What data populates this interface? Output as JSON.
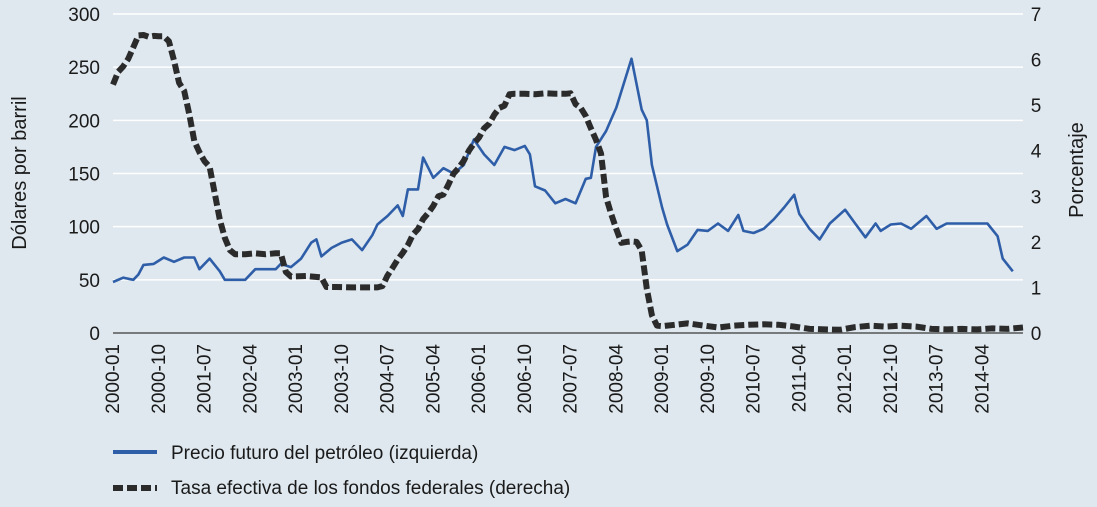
{
  "chart_data": {
    "type": "line",
    "ylabel_left": "Dólares por barril",
    "ylabel_right": "Porcentaje",
    "ylim_left": [
      0,
      300
    ],
    "ylim_right": [
      0,
      7
    ],
    "yticks_left": [
      "0",
      "50",
      "100",
      "150",
      "200",
      "250",
      "300"
    ],
    "yticks_right": [
      "0",
      "1",
      "2",
      "3",
      "4",
      "5",
      "6",
      "7"
    ],
    "x_start": "2000-01",
    "x_end": "2014-12",
    "xtick_labels": [
      "2000-01",
      "2000-10",
      "2001-07",
      "2002-04",
      "2003-01",
      "2003-10",
      "2004-07",
      "2005-04",
      "2006-01",
      "2006-10",
      "2007-07",
      "2008-04",
      "2009-01",
      "2009-10",
      "2010-07",
      "2011-04",
      "2012-01",
      "2012-10",
      "2013-07",
      "2014-04"
    ],
    "grid": true,
    "legend_position": "bottom",
    "colors": {
      "oil": "#2f5ea8",
      "rate": "#2b2b2b",
      "background": "#dfe8ef",
      "grid": "#ffffff"
    },
    "series": [
      {
        "name": "Precio futuro del petróleo (izquierda)",
        "axis": "left",
        "style": "solid",
        "points": [
          [
            "2000-01",
            48
          ],
          [
            "2000-03",
            52
          ],
          [
            "2000-05",
            50
          ],
          [
            "2000-06",
            55
          ],
          [
            "2000-07",
            64
          ],
          [
            "2000-09",
            65
          ],
          [
            "2000-11",
            71
          ],
          [
            "2001-01",
            67
          ],
          [
            "2001-03",
            71
          ],
          [
            "2001-05",
            71
          ],
          [
            "2001-06",
            60
          ],
          [
            "2001-08",
            70
          ],
          [
            "2001-10",
            58
          ],
          [
            "2001-11",
            50
          ],
          [
            "2002-01",
            50
          ],
          [
            "2002-03",
            50
          ],
          [
            "2002-05",
            60
          ],
          [
            "2002-07",
            60
          ],
          [
            "2002-09",
            60
          ],
          [
            "2002-10",
            65
          ],
          [
            "2002-12",
            62
          ],
          [
            "2003-02",
            70
          ],
          [
            "2003-04",
            85
          ],
          [
            "2003-05",
            88
          ],
          [
            "2003-06",
            72
          ],
          [
            "2003-08",
            80
          ],
          [
            "2003-10",
            85
          ],
          [
            "2003-12",
            88
          ],
          [
            "2004-02",
            78
          ],
          [
            "2004-04",
            92
          ],
          [
            "2004-05",
            102
          ],
          [
            "2004-07",
            110
          ],
          [
            "2004-09",
            120
          ],
          [
            "2004-10",
            110
          ],
          [
            "2004-11",
            135
          ],
          [
            "2005-01",
            135
          ],
          [
            "2005-02",
            165
          ],
          [
            "2005-04",
            146
          ],
          [
            "2005-06",
            155
          ],
          [
            "2005-08",
            150
          ],
          [
            "2005-10",
            158
          ],
          [
            "2005-12",
            182
          ],
          [
            "2006-02",
            168
          ],
          [
            "2006-04",
            158
          ],
          [
            "2006-06",
            175
          ],
          [
            "2006-08",
            172
          ],
          [
            "2006-10",
            176
          ],
          [
            "2006-11",
            168
          ],
          [
            "2006-12",
            138
          ],
          [
            "2007-02",
            134
          ],
          [
            "2007-04",
            122
          ],
          [
            "2007-06",
            126
          ],
          [
            "2007-08",
            122
          ],
          [
            "2007-10",
            145
          ],
          [
            "2007-11",
            146
          ],
          [
            "2007-12",
            175
          ],
          [
            "2008-02",
            190
          ],
          [
            "2008-04",
            212
          ],
          [
            "2008-07",
            258
          ],
          [
            "2008-09",
            210
          ],
          [
            "2008-10",
            200
          ],
          [
            "2008-11",
            158
          ],
          [
            "2009-01",
            118
          ],
          [
            "2009-02",
            102
          ],
          [
            "2009-04",
            77
          ],
          [
            "2009-06",
            83
          ],
          [
            "2009-08",
            97
          ],
          [
            "2009-10",
            96
          ],
          [
            "2009-12",
            103
          ],
          [
            "2010-02",
            96
          ],
          [
            "2010-04",
            111
          ],
          [
            "2010-05",
            96
          ],
          [
            "2010-07",
            94
          ],
          [
            "2010-09",
            98
          ],
          [
            "2010-11",
            107
          ],
          [
            "2011-01",
            118
          ],
          [
            "2011-03",
            130
          ],
          [
            "2011-04",
            112
          ],
          [
            "2011-06",
            98
          ],
          [
            "2011-08",
            88
          ],
          [
            "2011-10",
            103
          ],
          [
            "2012-01",
            116
          ],
          [
            "2012-03",
            103
          ],
          [
            "2012-05",
            90
          ],
          [
            "2012-07",
            103
          ],
          [
            "2012-08",
            96
          ],
          [
            "2012-10",
            102
          ],
          [
            "2012-12",
            103
          ],
          [
            "2013-02",
            98
          ],
          [
            "2013-05",
            110
          ],
          [
            "2013-07",
            98
          ],
          [
            "2013-09",
            103
          ],
          [
            "2013-11",
            103
          ],
          [
            "2014-01",
            103
          ],
          [
            "2014-03",
            103
          ],
          [
            "2014-05",
            103
          ],
          [
            "2014-07",
            91
          ],
          [
            "2014-08",
            70
          ],
          [
            "2014-10",
            58
          ]
        ]
      },
      {
        "name": "Tasa efectiva de los fondos federales (derecha)",
        "axis": "right",
        "style": "dashed",
        "points": [
          [
            "2000-01",
            5.45
          ],
          [
            "2000-02",
            5.73
          ],
          [
            "2000-03",
            5.85
          ],
          [
            "2000-04",
            6.02
          ],
          [
            "2000-05",
            6.27
          ],
          [
            "2000-06",
            6.53
          ],
          [
            "2000-07",
            6.54
          ],
          [
            "2000-08",
            6.5
          ],
          [
            "2000-09",
            6.52
          ],
          [
            "2000-10",
            6.51
          ],
          [
            "2000-11",
            6.51
          ],
          [
            "2000-12",
            6.4
          ],
          [
            "2001-01",
            5.98
          ],
          [
            "2001-02",
            5.49
          ],
          [
            "2001-03",
            5.31
          ],
          [
            "2001-04",
            4.8
          ],
          [
            "2001-05",
            4.21
          ],
          [
            "2001-06",
            3.97
          ],
          [
            "2001-07",
            3.77
          ],
          [
            "2001-08",
            3.65
          ],
          [
            "2001-09",
            3.07
          ],
          [
            "2001-10",
            2.49
          ],
          [
            "2001-11",
            2.09
          ],
          [
            "2001-12",
            1.82
          ],
          [
            "2002-01",
            1.73
          ],
          [
            "2002-03",
            1.73
          ],
          [
            "2002-05",
            1.75
          ],
          [
            "2002-07",
            1.73
          ],
          [
            "2002-09",
            1.75
          ],
          [
            "2002-10",
            1.75
          ],
          [
            "2002-11",
            1.34
          ],
          [
            "2002-12",
            1.24
          ],
          [
            "2003-03",
            1.25
          ],
          [
            "2003-06",
            1.22
          ],
          [
            "2003-07",
            1.01
          ],
          [
            "2003-09",
            1.01
          ],
          [
            "2003-12",
            1.0
          ],
          [
            "2004-03",
            1.0
          ],
          [
            "2004-05",
            1.0
          ],
          [
            "2004-06",
            1.03
          ],
          [
            "2004-07",
            1.26
          ],
          [
            "2004-08",
            1.43
          ],
          [
            "2004-09",
            1.61
          ],
          [
            "2004-10",
            1.76
          ],
          [
            "2004-11",
            1.93
          ],
          [
            "2004-12",
            2.16
          ],
          [
            "2005-01",
            2.28
          ],
          [
            "2005-02",
            2.5
          ],
          [
            "2005-03",
            2.63
          ],
          [
            "2005-04",
            2.79
          ],
          [
            "2005-05",
            3.0
          ],
          [
            "2005-06",
            3.04
          ],
          [
            "2005-07",
            3.26
          ],
          [
            "2005-08",
            3.5
          ],
          [
            "2005-09",
            3.62
          ],
          [
            "2005-10",
            3.78
          ],
          [
            "2005-11",
            4.0
          ],
          [
            "2005-12",
            4.16
          ],
          [
            "2006-01",
            4.29
          ],
          [
            "2006-02",
            4.49
          ],
          [
            "2006-03",
            4.59
          ],
          [
            "2006-04",
            4.79
          ],
          [
            "2006-05",
            4.94
          ],
          [
            "2006-06",
            4.99
          ],
          [
            "2006-07",
            5.24
          ],
          [
            "2006-08",
            5.25
          ],
          [
            "2006-10",
            5.25
          ],
          [
            "2006-12",
            5.24
          ],
          [
            "2007-02",
            5.26
          ],
          [
            "2007-04",
            5.25
          ],
          [
            "2007-06",
            5.25
          ],
          [
            "2007-07",
            5.26
          ],
          [
            "2007-08",
            5.02
          ],
          [
            "2007-09",
            4.94
          ],
          [
            "2007-10",
            4.76
          ],
          [
            "2007-11",
            4.49
          ],
          [
            "2007-12",
            4.24
          ],
          [
            "2008-01",
            3.94
          ],
          [
            "2008-02",
            2.98
          ],
          [
            "2008-03",
            2.61
          ],
          [
            "2008-04",
            2.28
          ],
          [
            "2008-05",
            1.98
          ],
          [
            "2008-06",
            2.0
          ],
          [
            "2008-07",
            2.01
          ],
          [
            "2008-08",
            2.0
          ],
          [
            "2008-09",
            1.81
          ],
          [
            "2008-10",
            0.97
          ],
          [
            "2008-11",
            0.39
          ],
          [
            "2008-12",
            0.16
          ],
          [
            "2009-01",
            0.15
          ],
          [
            "2009-06",
            0.21
          ],
          [
            "2009-12",
            0.12
          ],
          [
            "2010-03",
            0.16
          ],
          [
            "2010-06",
            0.18
          ],
          [
            "2010-09",
            0.19
          ],
          [
            "2010-12",
            0.18
          ],
          [
            "2011-03",
            0.14
          ],
          [
            "2011-06",
            0.09
          ],
          [
            "2011-09",
            0.08
          ],
          [
            "2011-12",
            0.07
          ],
          [
            "2012-03",
            0.13
          ],
          [
            "2012-06",
            0.16
          ],
          [
            "2012-09",
            0.14
          ],
          [
            "2012-12",
            0.16
          ],
          [
            "2013-03",
            0.14
          ],
          [
            "2013-06",
            0.09
          ],
          [
            "2013-09",
            0.08
          ],
          [
            "2013-12",
            0.09
          ],
          [
            "2014-03",
            0.08
          ],
          [
            "2014-06",
            0.1
          ],
          [
            "2014-09",
            0.09
          ],
          [
            "2014-12",
            0.12
          ]
        ]
      }
    ]
  }
}
